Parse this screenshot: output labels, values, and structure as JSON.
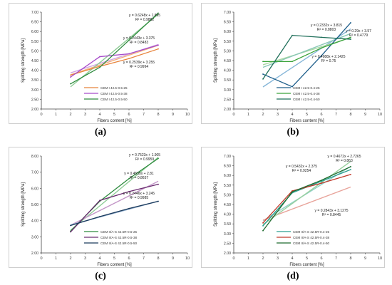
{
  "chart_data": [
    {
      "panel_id": "a",
      "caption": "(a)",
      "type": "line",
      "xlabel": "Fibers content [%]",
      "ylabel": "Splitting strength [MPa]",
      "xlim": [
        0,
        10
      ],
      "ylim": [
        2.0,
        7.0
      ],
      "xticks": [
        0,
        1,
        2,
        3,
        4,
        5,
        6,
        7,
        8,
        9,
        10
      ],
      "yticks": [
        2.0,
        2.5,
        3.0,
        3.5,
        4.0,
        4.5,
        5.0,
        5.5,
        6.0,
        6.5,
        7.0
      ],
      "grid": false,
      "legend_position": "bottom-right",
      "x": [
        2,
        4,
        6,
        8
      ],
      "series": [
        {
          "name": "CEM I 42.5-0.5-25",
          "color": "#e8843c",
          "values": [
            3.75,
            4.2,
            4.6,
            5.1
          ],
          "trend": {
            "slope": 0.2539,
            "intercept": 3.255,
            "color": "#f2b07c"
          }
        },
        {
          "name": "CEM I 42.5-0.5-38",
          "color": "#a64ac9",
          "values": [
            3.65,
            4.7,
            4.85,
            5.3
          ],
          "trend": {
            "slope": 0.2443,
            "intercept": 3.375,
            "color": "#d2a7e4"
          }
        },
        {
          "name": "CEM I 42.5-0.5-50",
          "color": "#2e8b3e",
          "values": [
            3.3,
            4.15,
            5.55,
            6.95
          ],
          "trend": {
            "slope": 0.6248,
            "intercept": 1.895,
            "color": "#8fcc96"
          }
        }
      ],
      "annotations": [
        {
          "eq": "y = 0.6248x + 1.895",
          "r2": "R² = 0.9882"
        },
        {
          "eq": "y = 0.2443x + 3.375",
          "r2": "R² = 0.8483"
        },
        {
          "eq": "y = 0.2539x + 3.255",
          "r2": "R² = 0.9994"
        }
      ]
    },
    {
      "panel_id": "b",
      "caption": "(b)",
      "type": "line",
      "xlabel": "Fibers content [%]",
      "ylabel": "Splitting strength [MPa]",
      "xlim": [
        0,
        10
      ],
      "ylim": [
        2.0,
        7.0
      ],
      "xticks": [
        0,
        1,
        2,
        3,
        4,
        5,
        6,
        7,
        8,
        9,
        10
      ],
      "yticks": [
        2.0,
        2.5,
        3.0,
        3.5,
        4.0,
        4.5,
        5.0,
        5.5,
        6.0,
        6.5,
        7.0
      ],
      "grid": false,
      "legend_position": "bottom-right",
      "x": [
        2,
        4,
        6,
        8
      ],
      "series": [
        {
          "name": "CEM I 42.5-0.4-25",
          "color": "#1f5f8b",
          "values": [
            3.8,
            3.15,
            4.75,
            6.45
          ],
          "trend": {
            "slope": 0.4988,
            "intercept": 2.1425,
            "color": "#86b6d8"
          }
        },
        {
          "name": "CEM I 42.5-0.4-38",
          "color": "#3aa33a",
          "values": [
            4.45,
            4.45,
            5.15,
            5.7
          ],
          "trend": {
            "slope": 0.2332,
            "intercept": 3.815,
            "color": "#a7d8a0"
          }
        },
        {
          "name": "CEM I 42.5-0.4-50",
          "color": "#1f6f5a",
          "values": [
            3.55,
            5.8,
            5.7,
            5.6
          ],
          "trend": {
            "slope": 0.29,
            "intercept": 3.57,
            "color": "#8cc8b8"
          }
        }
      ],
      "annotations": [
        {
          "eq": "y = 0.2332x + 3.815",
          "r2": "R² = 0.8803"
        },
        {
          "eq": "y = 0.29x + 3.57",
          "r2": "R² = 0.4779"
        },
        {
          "eq": "y = 0.4988x + 2.1425",
          "r2": "R² = 0.75"
        }
      ]
    },
    {
      "panel_id": "c",
      "caption": "(c)",
      "type": "line",
      "xlabel": "Fibers content [%]",
      "ylabel": "Splitting strength [MPa]",
      "xlim": [
        0,
        10
      ],
      "ylim": [
        2.0,
        8.0
      ],
      "xticks": [
        0,
        1,
        2,
        3,
        4,
        5,
        6,
        7,
        8,
        9,
        10
      ],
      "yticks": [
        2.0,
        3.0,
        4.0,
        5.0,
        6.0,
        7.0,
        8.0
      ],
      "grid": false,
      "legend_position": "bottom-right",
      "x": [
        2,
        4,
        6,
        8
      ],
      "series": [
        {
          "name": "CEM II/A-S 42.5R-0.5-25",
          "color": "#2e8b3e",
          "values": [
            3.35,
            5.2,
            6.6,
            7.85
          ],
          "trend": {
            "slope": 0.7523,
            "intercept": 1.905,
            "color": "#8fcc96"
          }
        },
        {
          "name": "CEM II/A-S 42.5R-0.5-38",
          "color": "#6a2c70",
          "values": [
            3.3,
            5.25,
            5.8,
            6.25
          ],
          "trend": {
            "slope": 0.4535,
            "intercept": 2.81,
            "color": "#c497c8"
          }
        },
        {
          "name": "CEM II/A-S 42.5R-0.5-50",
          "color": "#1b3a5c",
          "values": [
            3.7,
            4.25,
            4.75,
            5.2
          ],
          "trend": {
            "slope": 0.2446,
            "intercept": 3.245,
            "color": "#8aa8c8"
          }
        }
      ],
      "annotations": [
        {
          "eq": "y = 0.7523x + 1.905",
          "r2": "R² = 0.9959"
        },
        {
          "eq": "y = 0.4535x + 2.81",
          "r2": "R² = 0.8657"
        },
        {
          "eq": "y = 0.2446x + 3.245",
          "r2": "R² = 0.9985"
        }
      ]
    },
    {
      "panel_id": "d",
      "caption": "(d)",
      "type": "line",
      "xlabel": "Fibers content [%]",
      "ylabel": "Splitting strength [MPa]",
      "xlim": [
        0,
        10
      ],
      "ylim": [
        2.0,
        7.0
      ],
      "xticks": [
        0,
        1,
        2,
        3,
        4,
        5,
        6,
        7,
        8,
        9,
        10
      ],
      "yticks": [
        2.0,
        2.5,
        3.0,
        3.5,
        4.0,
        4.5,
        5.0,
        5.5,
        6.0,
        6.5,
        7.0
      ],
      "grid": false,
      "legend_position": "bottom-right",
      "x": [
        2,
        4,
        6,
        8
      ],
      "series": [
        {
          "name": "CEM II/A-S 42.5R-0.4-25",
          "color": "#2a9d8f",
          "values": [
            3.4,
            5.1,
            5.7,
            6.3
          ],
          "trend": {
            "slope": 0.4672,
            "intercept": 2.7265,
            "color": "#8fd1c8"
          }
        },
        {
          "name": "CEM II/A-S 42.5R-0.4-38",
          "color": "#c0392b",
          "values": [
            3.55,
            5.2,
            5.6,
            6.05
          ],
          "trend": {
            "slope": 0.2843,
            "intercept": 3.1275,
            "color": "#e8a39a"
          }
        },
        {
          "name": "CEM II/A-S 42.5R-0.4-50",
          "color": "#1e6b2e",
          "values": [
            3.15,
            5.15,
            5.75,
            6.45
          ],
          "trend": {
            "slope": 0.5432,
            "intercept": 2.375,
            "color": "#98cf9e"
          }
        }
      ],
      "annotations": [
        {
          "eq": "y = 0.4672x + 2.7265",
          "r2": "R² = 0.863"
        },
        {
          "eq": "y = 0.5432x + 2.375",
          "r2": "R² = 0.9254"
        },
        {
          "eq": "y = 0.2843x + 3.1275",
          "r2": "R² = 0.8445"
        }
      ]
    }
  ]
}
